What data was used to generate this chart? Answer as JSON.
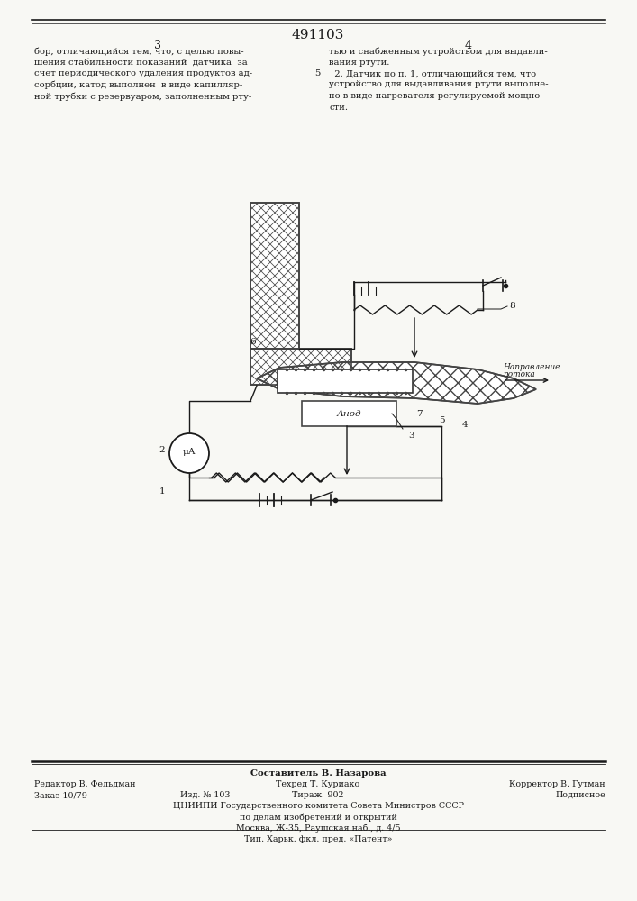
{
  "patent_number": "491103",
  "page_left": "3",
  "page_right": "4",
  "top_text_left": [
    "бор, отличающийся тем, что, с целью повы-",
    "шения стабильности показаний  датчика  за",
    "счет периодического удаления продуктов ад-",
    "сорбции, катод выполнен  в виде капилляр-",
    "ной трубки с резервуаром, заполненным рту-"
  ],
  "top_text_right": [
    "тью и снабженным устройством для выдавли-",
    "вания ртути.",
    "  2. Датчик по п. 1, отличающийся тем, что",
    "устройство для выдавливания ртути выполне-",
    "но в виде нагревателя регулируемой мощно-",
    "сти."
  ],
  "footer_left": "Редактор В. Фельдман",
  "footer_center1": "Составитель В. Назарова",
  "footer_center2": "Техред Т. Куриако",
  "footer_right": "Корректор В. Гутман",
  "footer_order": "Заказ 10/79",
  "footer_izd": "Изд. № 103",
  "footer_tirazh": "Тираж  902",
  "footer_podpisnoe": "Подписное",
  "footer_cniip": "ЦНИИПИ Государственного комитета Совета Министров СССР",
  "footer_po": "по делам изобретений и открытий",
  "footer_moskva": "Москва, Ж-35, Раушская наб., д. 4/5",
  "footer_tip": "Тип. Харьк. фкл. пред. «Патент»",
  "bg_color": "#f8f8f4",
  "line_color": "#1a1a1a",
  "text_color": "#1a1a1a"
}
